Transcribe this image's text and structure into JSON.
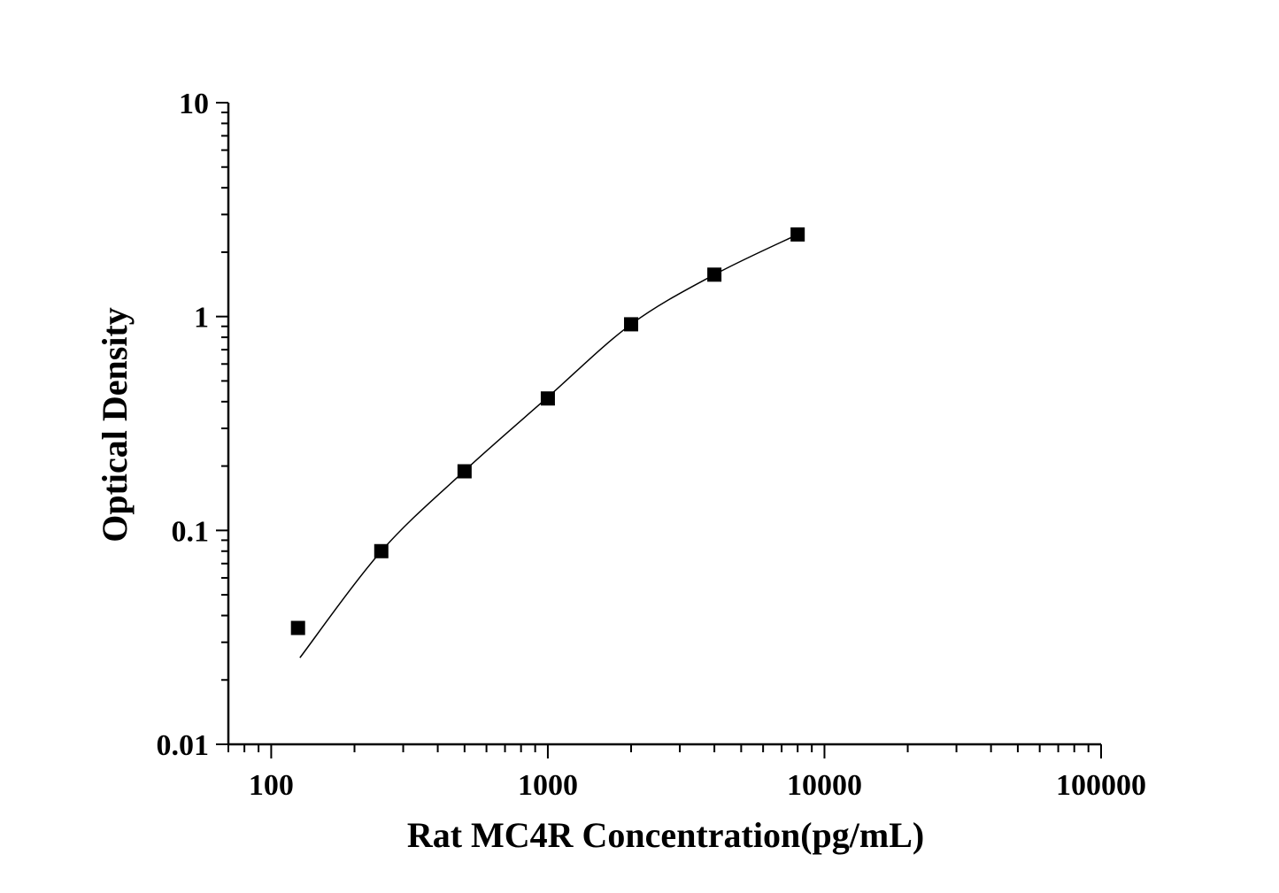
{
  "chart_data": {
    "type": "scatter",
    "title": "",
    "xlabel": "Rat MC4R Concentration(pg/mL)",
    "ylabel": "Optical Density",
    "x_scale": "log",
    "y_scale": "log",
    "xlim": [
      70,
      100000
    ],
    "ylim": [
      0.01,
      10
    ],
    "x_ticks": [
      100,
      1000,
      10000,
      100000
    ],
    "x_tick_labels": [
      "100",
      "1000",
      "10000",
      "100000"
    ],
    "y_ticks": [
      0.01,
      0.1,
      1,
      10
    ],
    "y_tick_labels": [
      "0.01",
      "0.1",
      "1",
      "10"
    ],
    "grid": false,
    "legend": "none",
    "marker": "square",
    "color": "#000000",
    "series": [
      {
        "x": [
          125,
          250,
          500,
          1000,
          2000,
          4000,
          8000
        ],
        "y": [
          0.035,
          0.08,
          0.189,
          0.414,
          0.92,
          1.57,
          2.42
        ]
      }
    ],
    "fit_curve": {
      "x": [
        127,
        250,
        500,
        1000,
        2000,
        4000,
        8000
      ],
      "y": [
        0.0254,
        0.08,
        0.19,
        0.42,
        0.92,
        1.57,
        2.42
      ]
    }
  }
}
